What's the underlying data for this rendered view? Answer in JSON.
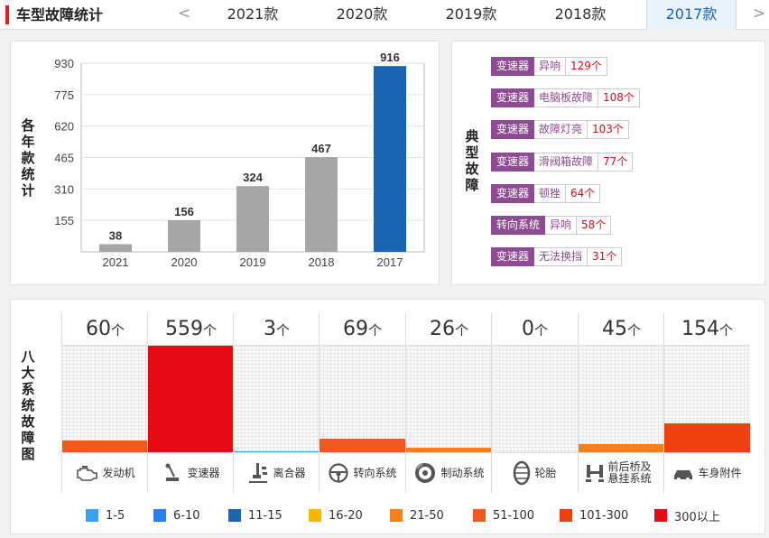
{
  "header": {
    "title": "车型故障统计",
    "prev_arrow": "<",
    "next_arrow": ">",
    "tabs": [
      "2021款",
      "2020款",
      "2019款",
      "2018款",
      "2017款"
    ],
    "active_tab": "2017款"
  },
  "year_chart": {
    "side_label": [
      "各",
      "年",
      "款",
      "统",
      "计"
    ]
  },
  "chart_data": {
    "type": "bar",
    "title": "",
    "xlabel": "",
    "ylabel": "各年款统计",
    "categories": [
      "2021",
      "2020",
      "2019",
      "2018",
      "2017"
    ],
    "values": [
      38,
      156,
      324,
      467,
      916
    ],
    "highlight": "2017",
    "yticks": [
      155,
      310,
      465,
      620,
      775,
      930
    ],
    "ylim": [
      0,
      930
    ],
    "colors": {
      "normal": "#a6a6a6",
      "highlight": "#1a64b4"
    }
  },
  "typical_faults": {
    "side_label": [
      "典",
      "型",
      "故",
      "障"
    ],
    "items": [
      {
        "category": "变速器",
        "name": "异响",
        "count": "129个"
      },
      {
        "category": "变速器",
        "name": "电脑板故障",
        "count": "108个"
      },
      {
        "category": "变速器",
        "name": "故障灯亮",
        "count": "103个"
      },
      {
        "category": "变速器",
        "name": "滑阀箱故障",
        "count": "77个"
      },
      {
        "category": "变速器",
        "name": "顿挫",
        "count": "64个"
      },
      {
        "category": "转向系统",
        "name": "异响",
        "count": "58个"
      },
      {
        "category": "变速器",
        "name": "无法换挡",
        "count": "31个"
      }
    ]
  },
  "eight_systems": {
    "side_label": [
      "八",
      "大",
      "系",
      "统",
      "故",
      "障",
      "图"
    ],
    "unit": "个",
    "max_value": 559,
    "items": [
      {
        "count": "60",
        "value": 60,
        "label": "发动机",
        "icon": "engine-icon",
        "color": "#f15a1f"
      },
      {
        "count": "559",
        "value": 559,
        "label": "变速器",
        "icon": "gear-shift-icon",
        "color": "#e60b17"
      },
      {
        "count": "3",
        "value": 3,
        "label": "离合器",
        "icon": "clutch-pedal-icon",
        "color": "#3aa0f0"
      },
      {
        "count": "69",
        "value": 69,
        "label": "转向系统",
        "icon": "steering-wheel-icon",
        "color": "#f15a1f"
      },
      {
        "count": "26",
        "value": 26,
        "label": "制动系统",
        "icon": "brake-disc-icon",
        "color": "#f5801f"
      },
      {
        "count": "0",
        "value": 0,
        "label": "轮胎",
        "icon": "tire-icon",
        "color": "#cccccc"
      },
      {
        "count": "45",
        "value": 45,
        "label": "前后桥及悬挂系统",
        "icon": "suspension-icon",
        "color": "#f5801f"
      },
      {
        "count": "154",
        "value": 154,
        "label": "车身附件",
        "icon": "car-body-icon",
        "color": "#f04012"
      }
    ]
  },
  "legend": [
    {
      "label": "1-5",
      "color": "#3aa0f0"
    },
    {
      "label": "6-10",
      "color": "#2a7ff0"
    },
    {
      "label": "11-15",
      "color": "#1a64b4"
    },
    {
      "label": "16-20",
      "color": "#f5b800"
    },
    {
      "label": "21-50",
      "color": "#f5801f"
    },
    {
      "label": "51-100",
      "color": "#f15a1f"
    },
    {
      "label": "101-300",
      "color": "#f04012"
    },
    {
      "label": "300以上",
      "color": "#e60b17"
    }
  ]
}
